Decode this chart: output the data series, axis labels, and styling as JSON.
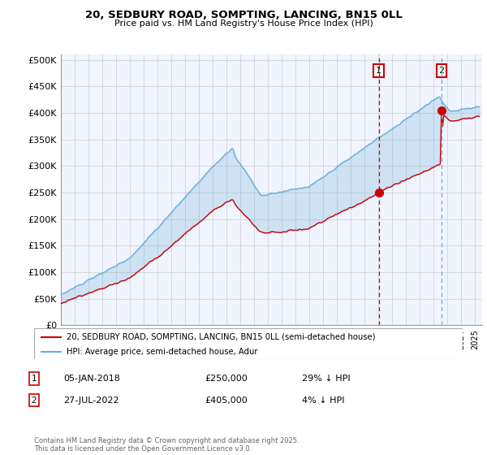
{
  "title": "20, SEDBURY ROAD, SOMPTING, LANCING, BN15 0LL",
  "subtitle": "Price paid vs. HM Land Registry's House Price Index (HPI)",
  "ylabel_ticks": [
    "£0",
    "£50K",
    "£100K",
    "£150K",
    "£200K",
    "£250K",
    "£300K",
    "£350K",
    "£400K",
    "£450K",
    "£500K"
  ],
  "ytick_values": [
    0,
    50000,
    100000,
    150000,
    200000,
    250000,
    300000,
    350000,
    400000,
    450000,
    500000
  ],
  "ylim": [
    0,
    510000
  ],
  "xlim_start": 1995.0,
  "xlim_end": 2025.5,
  "hpi_color": "#6baed6",
  "price_color": "#cc0000",
  "marker1_date": 2018.02,
  "marker1_price": 250000,
  "marker1_label": "05-JAN-2018",
  "marker2_date": 2022.57,
  "marker2_price": 405000,
  "marker2_label": "27-JUL-2022",
  "legend_property": "20, SEDBURY ROAD, SOMPTING, LANCING, BN15 0LL (semi-detached house)",
  "legend_hpi": "HPI: Average price, semi-detached house, Adur",
  "footnote": "Contains HM Land Registry data © Crown copyright and database right 2025.\nThis data is licensed under the Open Government Licence v3.0.",
  "bg_color": "#ffffff",
  "grid_color": "#cccccc",
  "fill_color": "#ddeeff"
}
